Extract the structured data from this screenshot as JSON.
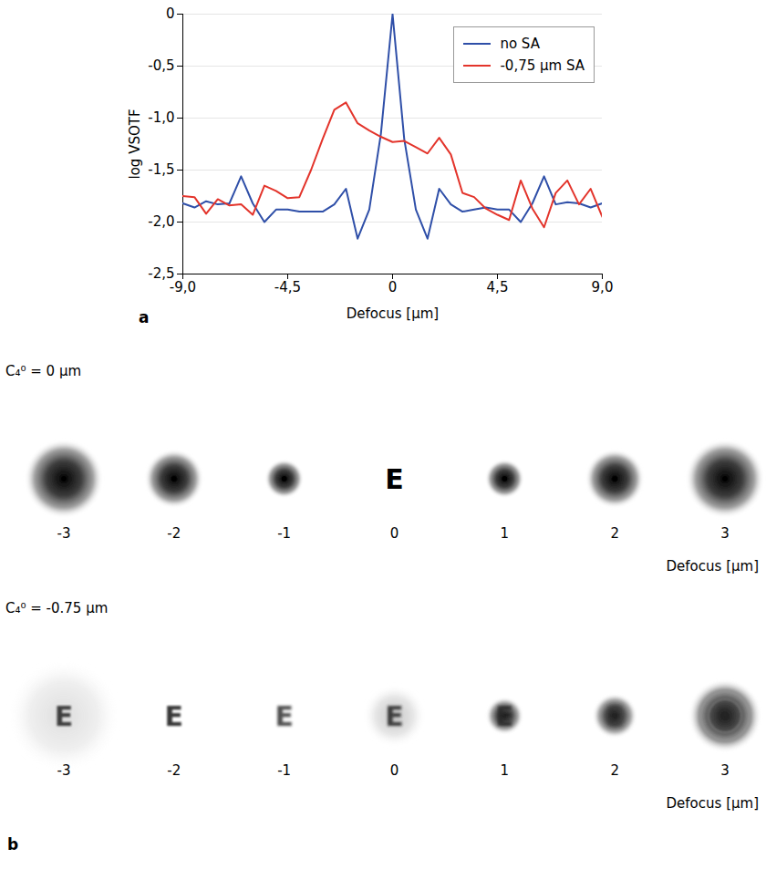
{
  "chart_data": {
    "type": "line",
    "panel_label": "a",
    "xlabel": "Defocus [µm]",
    "ylabel": "log VSOTF",
    "x": [
      -9,
      -8.5,
      -8,
      -7.5,
      -7,
      -6.5,
      -6,
      -5.5,
      -5,
      -4.5,
      -4,
      -3.5,
      -3,
      -2.5,
      -2,
      -1.5,
      -1,
      -0.5,
      0,
      0.5,
      1,
      1.5,
      2,
      2.5,
      3,
      3.5,
      4,
      4.5,
      5,
      5.5,
      6,
      6.5,
      7,
      7.5,
      8,
      8.5,
      9
    ],
    "series": [
      {
        "name": "no  SA",
        "color": "#2f4fa8",
        "values": [
          -1.82,
          -1.86,
          -1.8,
          -1.83,
          -1.82,
          -1.56,
          -1.82,
          -2.0,
          -1.88,
          -1.88,
          -1.9,
          -1.9,
          -1.9,
          -1.83,
          -1.68,
          -2.16,
          -1.88,
          -1.15,
          0,
          -1.2,
          -1.88,
          -2.16,
          -1.68,
          -1.83,
          -1.9,
          -1.88,
          -1.86,
          -1.88,
          -1.88,
          -2.0,
          -1.82,
          -1.56,
          -1.83,
          -1.81,
          -1.82,
          -1.86,
          -1.82
        ]
      },
      {
        "name": "-0,75 µm SA",
        "color": "#e3342b",
        "values": [
          -1.75,
          -1.76,
          -1.92,
          -1.78,
          -1.84,
          -1.83,
          -1.93,
          -1.65,
          -1.7,
          -1.77,
          -1.76,
          -1.5,
          -1.2,
          -0.92,
          -0.85,
          -1.05,
          -1.12,
          -1.18,
          -1.23,
          -1.22,
          -1.28,
          -1.34,
          -1.19,
          -1.35,
          -1.72,
          -1.76,
          -1.87,
          -1.93,
          -1.98,
          -1.6,
          -1.87,
          -2.05,
          -1.72,
          -1.6,
          -1.83,
          -1.68,
          -1.95
        ]
      }
    ],
    "xlim": [
      -9,
      9
    ],
    "xticks": [
      {
        "value": -9,
        "label": "-9,0"
      },
      {
        "value": -4.5,
        "label": "-4,5"
      },
      0,
      {
        "value": 4.5,
        "label": "4,5"
      },
      {
        "value": 9,
        "label": "9,0"
      }
    ],
    "ylim": [
      -2.5,
      0
    ],
    "yticks": [
      {
        "value": -2.5,
        "label": "-2,5"
      },
      {
        "value": -2,
        "label": "-2,0"
      },
      {
        "value": -1.5,
        "label": "-1,5"
      },
      {
        "value": -1,
        "label": "-1,0"
      },
      {
        "value": -0.5,
        "label": "-0,5"
      },
      0
    ],
    "grid": true,
    "legend": "top-right"
  },
  "panel_b": {
    "panel_label": "b",
    "optotype": "E",
    "xlabel": "Defocus [µm]",
    "defocus": [
      -3,
      -2,
      -1,
      0,
      1,
      2,
      3
    ],
    "rows": [
      {
        "label": "C₄⁰ = 0 µm",
        "c40": 0
      },
      {
        "label": "C₄⁰ = -0.75 µm",
        "c40": -0.75
      }
    ]
  }
}
